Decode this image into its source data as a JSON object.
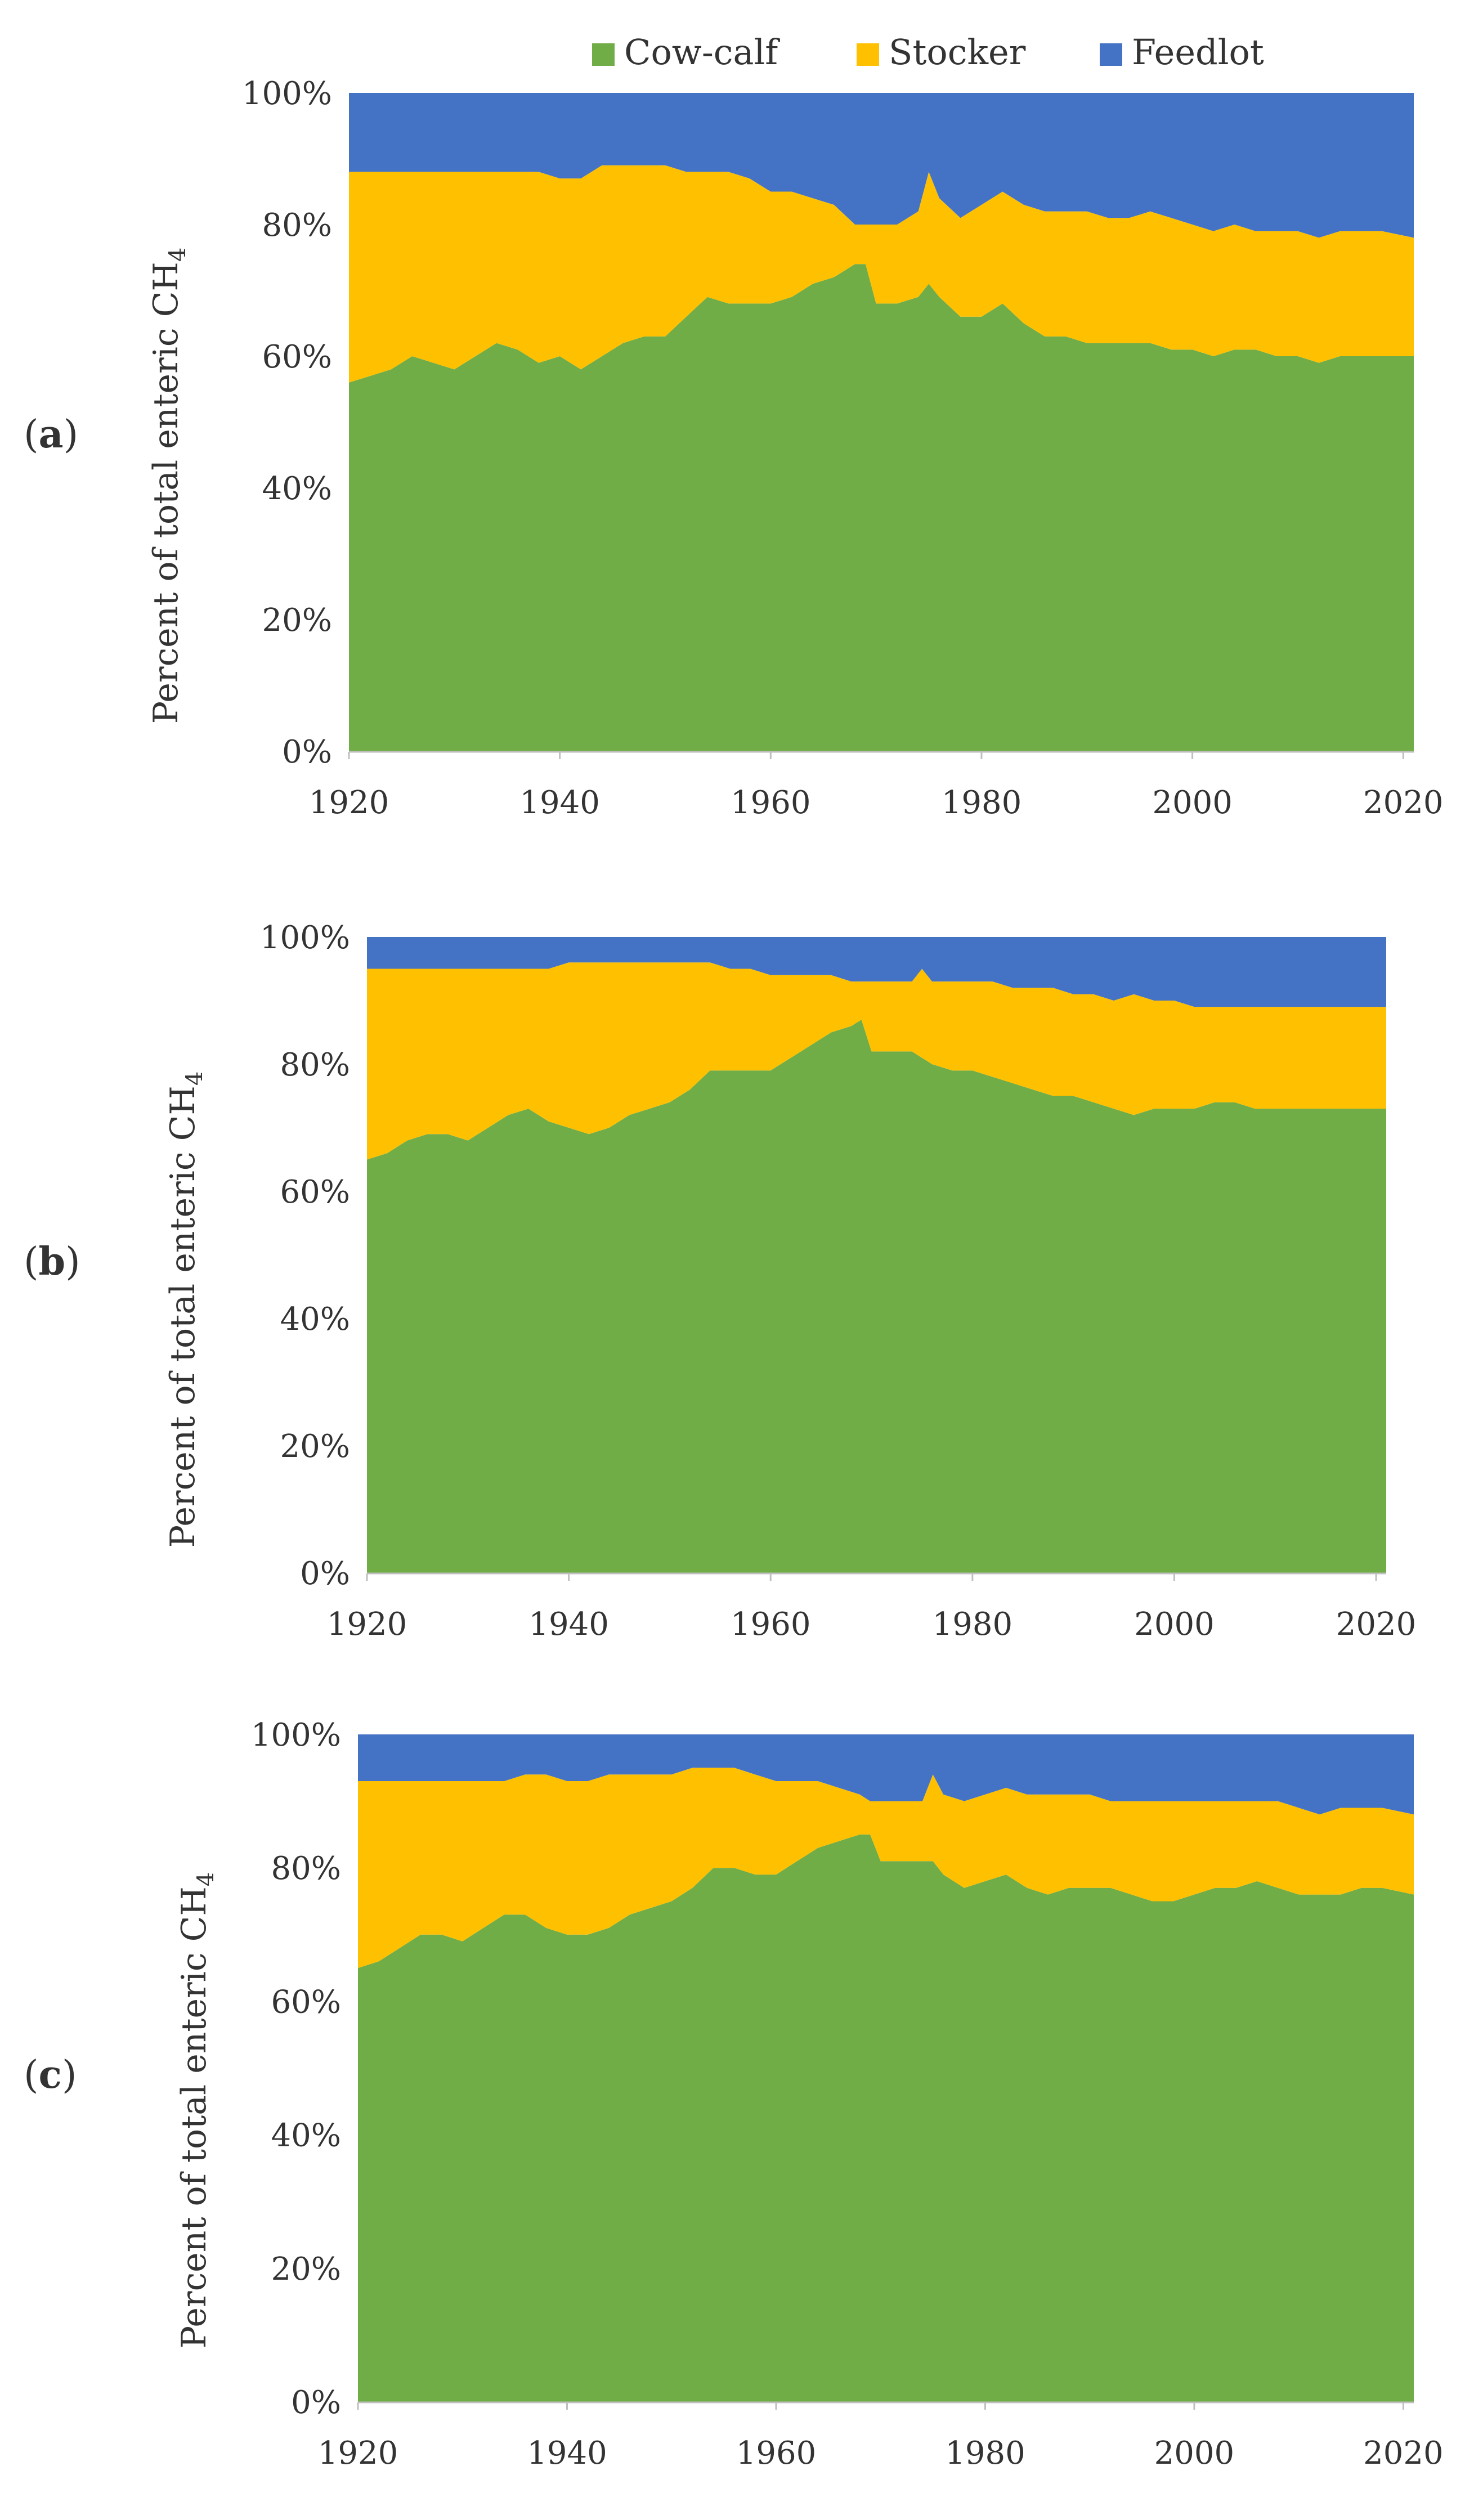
{
  "legend": [
    {
      "name": "Cow-calf",
      "color": "#70AD47"
    },
    {
      "name": "Stocker",
      "color": "#FFC000"
    },
    {
      "name": "Feedlot",
      "color": "#4472C4"
    }
  ],
  "chart_data": [
    {
      "type": "area",
      "stacked": "percent",
      "panel": "a",
      "ylabel_main": "Percent of total enteric CH",
      "ylabel_sub": "4",
      "xlim": [
        1920,
        2021
      ],
      "ylim": [
        0,
        100
      ],
      "xticks": [
        "1920",
        "1940",
        "1960",
        "1980",
        "2000",
        "2020"
      ],
      "yticks": [
        "0%",
        "20%",
        "40%",
        "60%",
        "80%",
        "100%"
      ],
      "x": [
        1920,
        1922,
        1924,
        1926,
        1928,
        1930,
        1932,
        1934,
        1936,
        1938,
        1940,
        1942,
        1944,
        1946,
        1948,
        1950,
        1952,
        1954,
        1956,
        1958,
        1960,
        1962,
        1964,
        1966,
        1968,
        1969,
        1970,
        1972,
        1974,
        1975,
        1976,
        1978,
        1980,
        1982,
        1984,
        1986,
        1988,
        1990,
        1992,
        1994,
        1996,
        1998,
        2000,
        2002,
        2004,
        2006,
        2008,
        2010,
        2012,
        2014,
        2016,
        2018,
        2021
      ],
      "series": [
        {
          "name": "Cow-calf",
          "values": [
            56,
            57,
            58,
            60,
            59,
            58,
            60,
            62,
            61,
            59,
            60,
            58,
            60,
            62,
            63,
            63,
            66,
            69,
            68,
            68,
            68,
            69,
            71,
            72,
            74,
            74,
            68,
            68,
            69,
            71,
            69,
            66,
            66,
            68,
            65,
            63,
            63,
            62,
            62,
            62,
            62,
            61,
            61,
            60,
            61,
            61,
            60,
            60,
            59,
            60,
            60,
            60,
            60
          ]
        },
        {
          "name": "Stocker",
          "values": [
            32,
            31,
            30,
            28,
            29,
            30,
            28,
            26,
            27,
            29,
            27,
            29,
            29,
            27,
            26,
            26,
            22,
            19,
            20,
            19,
            17,
            16,
            13,
            11,
            6,
            6,
            12,
            12,
            13,
            17,
            15,
            15,
            17,
            17,
            18,
            19,
            19,
            20,
            19,
            19,
            20,
            20,
            19,
            19,
            19,
            18,
            19,
            19,
            19,
            19,
            19,
            19,
            18
          ]
        },
        {
          "name": "Feedlot",
          "values": [
            12,
            12,
            12,
            12,
            12,
            12,
            12,
            12,
            12,
            12,
            13,
            13,
            11,
            11,
            11,
            11,
            12,
            12,
            12,
            13,
            15,
            15,
            16,
            17,
            20,
            20,
            20,
            20,
            18,
            12,
            16,
            19,
            17,
            15,
            17,
            18,
            18,
            18,
            19,
            19,
            18,
            19,
            20,
            21,
            20,
            21,
            21,
            21,
            22,
            21,
            21,
            21,
            22
          ]
        }
      ]
    },
    {
      "type": "area",
      "stacked": "percent",
      "panel": "b",
      "ylabel_main": "Percent of total enteric CH",
      "ylabel_sub": "4",
      "xlim": [
        1920,
        2021
      ],
      "ylim": [
        0,
        100
      ],
      "xticks": [
        "1920",
        "1940",
        "1960",
        "1980",
        "2000",
        "2020"
      ],
      "yticks": [
        "0%",
        "20%",
        "40%",
        "60%",
        "80%",
        "100%"
      ],
      "x": [
        1920,
        1922,
        1924,
        1926,
        1928,
        1930,
        1932,
        1934,
        1936,
        1938,
        1940,
        1942,
        1944,
        1946,
        1948,
        1950,
        1952,
        1954,
        1956,
        1958,
        1960,
        1962,
        1964,
        1966,
        1968,
        1969,
        1970,
        1972,
        1974,
        1975,
        1976,
        1978,
        1980,
        1982,
        1984,
        1986,
        1988,
        1990,
        1992,
        1994,
        1996,
        1998,
        2000,
        2002,
        2004,
        2006,
        2008,
        2010,
        2012,
        2014,
        2016,
        2018,
        2021
      ],
      "series": [
        {
          "name": "Cow-calf",
          "values": [
            65,
            66,
            68,
            69,
            69,
            68,
            70,
            72,
            73,
            71,
            70,
            69,
            70,
            72,
            73,
            74,
            76,
            79,
            79,
            79,
            79,
            81,
            83,
            85,
            86,
            87,
            82,
            82,
            82,
            81,
            80,
            79,
            79,
            78,
            77,
            76,
            75,
            75,
            74,
            73,
            72,
            73,
            73,
            73,
            74,
            74,
            73,
            73,
            73,
            73,
            73,
            73,
            73
          ]
        },
        {
          "name": "Stocker",
          "values": [
            30,
            29,
            27,
            26,
            26,
            27,
            25,
            23,
            22,
            24,
            26,
            27,
            26,
            24,
            23,
            22,
            20,
            17,
            16,
            16,
            15,
            13,
            11,
            9,
            7,
            6,
            11,
            11,
            11,
            14,
            13,
            14,
            14,
            15,
            15,
            16,
            17,
            16,
            17,
            17,
            19,
            17,
            17,
            16,
            15,
            15,
            16,
            16,
            16,
            16,
            16,
            16,
            16
          ]
        },
        {
          "name": "Feedlot",
          "values": [
            5,
            5,
            5,
            5,
            5,
            5,
            5,
            5,
            5,
            5,
            4,
            4,
            4,
            4,
            4,
            4,
            4,
            4,
            5,
            5,
            6,
            6,
            6,
            6,
            7,
            7,
            7,
            7,
            7,
            5,
            7,
            7,
            7,
            7,
            8,
            8,
            8,
            9,
            9,
            10,
            9,
            10,
            10,
            11,
            11,
            11,
            11,
            11,
            11,
            11,
            11,
            11,
            11
          ]
        }
      ]
    },
    {
      "type": "area",
      "stacked": "percent",
      "panel": "c",
      "ylabel_main": "Percent of total enteric CH",
      "ylabel_sub": "4",
      "xlim": [
        1920,
        2021
      ],
      "ylim": [
        0,
        100
      ],
      "xticks": [
        "1920",
        "1940",
        "1960",
        "1980",
        "2000",
        "2020"
      ],
      "yticks": [
        "0%",
        "20%",
        "40%",
        "60%",
        "80%",
        "100%"
      ],
      "x": [
        1920,
        1922,
        1924,
        1926,
        1928,
        1930,
        1932,
        1934,
        1936,
        1938,
        1940,
        1942,
        1944,
        1946,
        1948,
        1950,
        1952,
        1954,
        1956,
        1958,
        1960,
        1962,
        1964,
        1966,
        1968,
        1969,
        1970,
        1972,
        1974,
        1975,
        1976,
        1978,
        1980,
        1982,
        1984,
        1986,
        1988,
        1990,
        1992,
        1994,
        1996,
        1998,
        2000,
        2002,
        2004,
        2006,
        2008,
        2010,
        2012,
        2014,
        2016,
        2018,
        2021
      ],
      "series": [
        {
          "name": "Cow-calf",
          "values": [
            65,
            66,
            68,
            70,
            70,
            69,
            71,
            73,
            73,
            71,
            70,
            70,
            71,
            73,
            74,
            75,
            77,
            80,
            80,
            79,
            79,
            81,
            83,
            84,
            85,
            85,
            81,
            81,
            81,
            81,
            79,
            77,
            78,
            79,
            77,
            76,
            77,
            77,
            77,
            76,
            75,
            75,
            76,
            77,
            77,
            78,
            77,
            76,
            76,
            76,
            77,
            77,
            76
          ]
        },
        {
          "name": "Stocker",
          "values": [
            28,
            27,
            25,
            23,
            23,
            24,
            22,
            20,
            21,
            23,
            23,
            23,
            23,
            21,
            20,
            19,
            18,
            15,
            15,
            15,
            14,
            12,
            10,
            8,
            6,
            5,
            9,
            9,
            9,
            13,
            12,
            13,
            13,
            13,
            14,
            15,
            14,
            14,
            13,
            14,
            15,
            15,
            14,
            13,
            13,
            12,
            13,
            13,
            12,
            13,
            12,
            12,
            12
          ]
        },
        {
          "name": "Feedlot",
          "values": [
            7,
            7,
            7,
            7,
            7,
            7,
            7,
            7,
            6,
            6,
            7,
            7,
            6,
            6,
            6,
            6,
            5,
            5,
            5,
            6,
            7,
            7,
            7,
            8,
            9,
            10,
            10,
            10,
            10,
            6,
            9,
            10,
            9,
            8,
            9,
            9,
            9,
            9,
            10,
            10,
            10,
            10,
            10,
            10,
            10,
            10,
            10,
            11,
            12,
            11,
            11,
            11,
            12
          ]
        }
      ]
    }
  ]
}
